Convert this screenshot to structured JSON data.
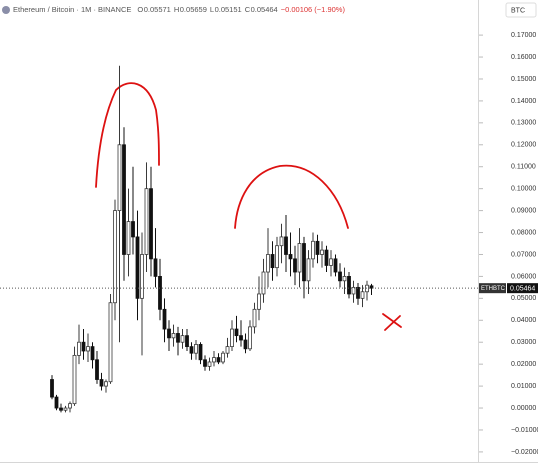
{
  "chart_data": {
    "type": "candlestick",
    "title": "Ethereum / Bitcoin · 1M · BINANCE",
    "ohlc_labels": [
      "O",
      "H",
      "L",
      "C"
    ],
    "change": "−0.00106 (−1.90%)",
    "currency": "BTC",
    "symbol_label": "ETHBTC",
    "up_color": "#3a3a3a",
    "down_color": "#111111",
    "ylim": [
      -0.0246,
      0.186
    ],
    "yticks": [
      {
        "value": -0.02,
        "label": "−0.02000"
      },
      {
        "value": -0.01,
        "label": "−0.01000"
      },
      {
        "value": 0,
        "label": "0.00000"
      },
      {
        "value": 0.01,
        "label": "0.01000"
      },
      {
        "value": 0.02,
        "label": "0.02000"
      },
      {
        "value": 0.03,
        "label": "0.03000"
      },
      {
        "value": 0.04,
        "label": "0.04000"
      },
      {
        "value": 0.05,
        "label": "0.05000"
      },
      {
        "value": 0.06,
        "label": "0.06000"
      },
      {
        "value": 0.07,
        "label": "0.07000"
      },
      {
        "value": 0.08,
        "label": "0.08000"
      },
      {
        "value": 0.09,
        "label": "0.09000"
      },
      {
        "value": 0.1,
        "label": "0.10000"
      },
      {
        "value": 0.11,
        "label": "0.11000"
      },
      {
        "value": 0.12,
        "label": "0.12000"
      },
      {
        "value": 0.13,
        "label": "0.13000"
      },
      {
        "value": 0.14,
        "label": "0.14000"
      },
      {
        "value": 0.15,
        "label": "0.15000"
      },
      {
        "value": 0.16,
        "label": "0.16000"
      },
      {
        "value": 0.17,
        "label": "0.17000"
      }
    ],
    "open": [
      0.013,
      0.005,
      0.0,
      -0.001,
      0.0,
      0.002,
      0.024,
      0.03,
      0.026,
      0.028,
      0.022,
      0.013,
      0.01,
      0.012,
      0.048,
      0.09,
      0.12,
      0.07,
      0.085,
      0.078,
      0.05,
      0.07,
      0.1,
      0.068,
      0.06,
      0.045,
      0.036,
      0.032,
      0.034,
      0.03,
      0.033,
      0.028,
      0.025,
      0.029,
      0.022,
      0.019,
      0.021,
      0.023,
      0.021,
      0.025,
      0.028,
      0.036,
      0.033,
      0.031,
      0.027,
      0.037,
      0.045,
      0.052,
      0.062,
      0.07,
      0.064,
      0.074,
      0.078,
      0.07,
      0.068,
      0.062,
      0.075,
      0.058,
      0.068,
      0.076,
      0.07,
      0.072,
      0.065,
      0.068,
      0.062,
      0.058,
      0.06,
      0.052,
      0.055,
      0.05,
      0.053,
      0.05571
    ],
    "high": [
      0.015,
      0.006,
      0.002,
      0.001,
      0.003,
      0.028,
      0.038,
      0.036,
      0.034,
      0.03,
      0.026,
      0.016,
      0.013,
      0.052,
      0.095,
      0.156,
      0.128,
      0.1,
      0.11,
      0.09,
      0.08,
      0.112,
      0.11,
      0.082,
      0.068,
      0.05,
      0.04,
      0.038,
      0.037,
      0.036,
      0.036,
      0.03,
      0.031,
      0.03,
      0.024,
      0.023,
      0.026,
      0.025,
      0.026,
      0.032,
      0.04,
      0.042,
      0.04,
      0.034,
      0.04,
      0.048,
      0.06,
      0.068,
      0.082,
      0.076,
      0.078,
      0.084,
      0.088,
      0.08,
      0.074,
      0.082,
      0.078,
      0.072,
      0.08,
      0.079,
      0.076,
      0.074,
      0.072,
      0.07,
      0.066,
      0.064,
      0.062,
      0.058,
      0.057,
      0.056,
      0.058,
      0.05659
    ],
    "low": [
      0.004,
      -0.001,
      -0.002,
      -0.002,
      -0.002,
      0.001,
      0.02,
      0.022,
      0.021,
      0.018,
      0.011,
      0.008,
      0.007,
      0.011,
      0.04,
      0.03,
      0.058,
      0.06,
      0.07,
      0.04,
      0.024,
      0.062,
      0.06,
      0.055,
      0.04,
      0.03,
      0.026,
      0.028,
      0.024,
      0.027,
      0.026,
      0.022,
      0.022,
      0.02,
      0.017,
      0.017,
      0.019,
      0.02,
      0.02,
      0.023,
      0.026,
      0.03,
      0.028,
      0.025,
      0.026,
      0.034,
      0.04,
      0.048,
      0.055,
      0.058,
      0.06,
      0.066,
      0.062,
      0.06,
      0.056,
      0.055,
      0.05,
      0.052,
      0.064,
      0.066,
      0.064,
      0.062,
      0.06,
      0.06,
      0.055,
      0.052,
      0.05,
      0.048,
      0.047,
      0.046,
      0.049,
      0.05151
    ],
    "close": [
      0.005,
      0.0,
      -0.001,
      0.0,
      0.002,
      0.024,
      0.03,
      0.026,
      0.028,
      0.022,
      0.013,
      0.01,
      0.012,
      0.048,
      0.09,
      0.12,
      0.07,
      0.085,
      0.078,
      0.05,
      0.07,
      0.1,
      0.068,
      0.06,
      0.045,
      0.036,
      0.032,
      0.034,
      0.03,
      0.033,
      0.028,
      0.025,
      0.029,
      0.022,
      0.019,
      0.021,
      0.023,
      0.021,
      0.025,
      0.028,
      0.036,
      0.033,
      0.031,
      0.027,
      0.037,
      0.045,
      0.052,
      0.062,
      0.07,
      0.064,
      0.074,
      0.078,
      0.07,
      0.068,
      0.062,
      0.075,
      0.058,
      0.068,
      0.076,
      0.07,
      0.072,
      0.065,
      0.068,
      0.062,
      0.058,
      0.06,
      0.052,
      0.055,
      0.05,
      0.053,
      0.056,
      0.05464
    ]
  }
}
